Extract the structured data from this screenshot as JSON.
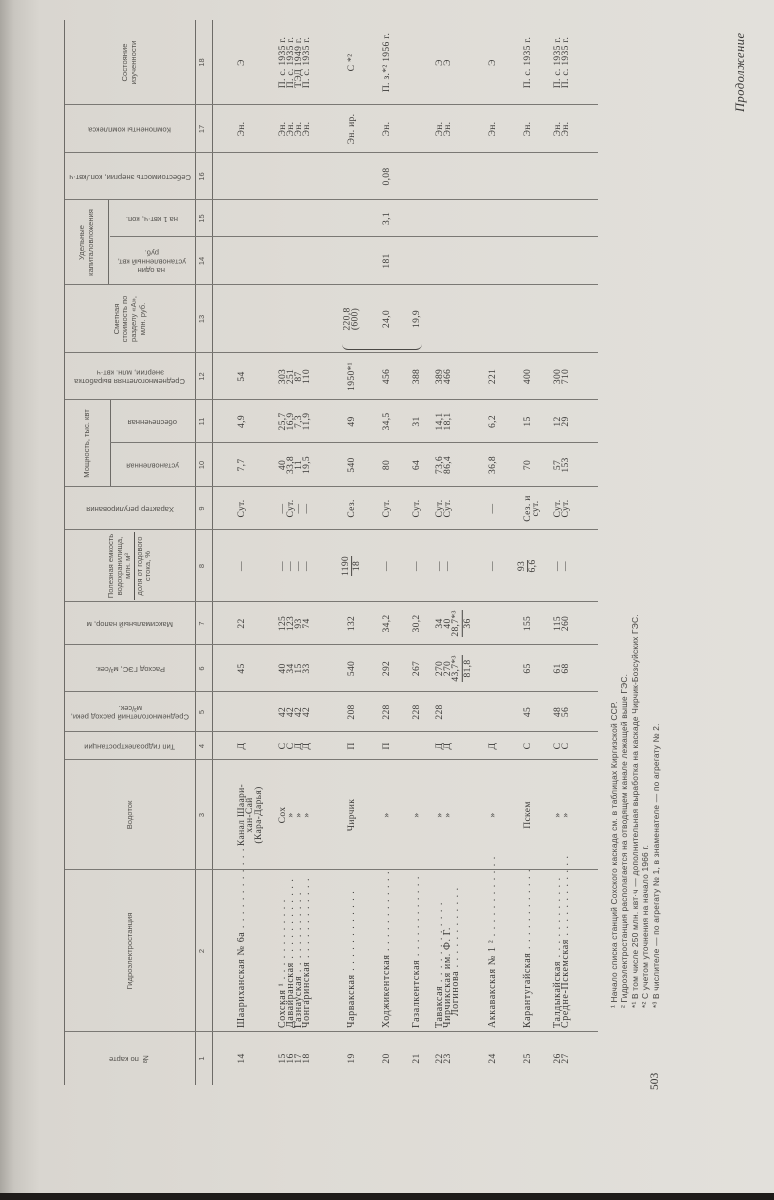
{
  "running_head": "Продолжение",
  "page_number": "503",
  "table": {
    "headers": {
      "no": "№ по карте",
      "station": "Гидроэлектростанция",
      "river": "Водоток",
      "type": "Тип гидроэлектростанции",
      "river_flow": "Среднемноголетний расход реки, м³/сек.",
      "plant_flow": "Расход ГЭС, м³/сек.",
      "head": "Максимальный напор, м",
      "reservoir_num": "Полезная емкость водохранилища, млн. м³",
      "reservoir_den": "доля от годового стока, %",
      "regulation": "Характер регулирования",
      "capacity_group": "Мощность, тыс. квт",
      "cap_installed": "установленная",
      "cap_firm": "обеспеченная",
      "output": "Среднемноголетняя выработка энергии, млн. квт·ч",
      "cost": "Сметная стоимость по разделу «А», млн. руб.",
      "investment_group": "Удельные капиталовложения",
      "spec_kw": "на один установленный квт, руб.",
      "spec_kwh": "на 1 квт·ч, коп.",
      "unit_cost": "Себестоимость энергии, коп./квт·ч",
      "components": "Компоненты комплекса",
      "status": "Состояние изученности"
    },
    "column_numbers": [
      "1",
      "2",
      "3",
      "4",
      "5",
      "6",
      "7",
      "8",
      "9",
      "10",
      "11",
      "12",
      "13",
      "14",
      "15",
      "16",
      "17",
      "18"
    ],
    "rows": [
      {
        "no": "14",
        "station": "Шаариханская № 6а",
        "river": [
          "Канал Шаари-",
          "хан-Сай",
          "(Кара-Дарья)"
        ],
        "type": "Д",
        "river_flow": "",
        "plant_flow": "45",
        "head": "22",
        "reservoir": "—",
        "regulation": "Сут.",
        "cap_installed": "7,7",
        "cap_firm": "4,9",
        "output": "54",
        "cost": "",
        "spec_kw": "",
        "spec_kwh": "",
        "unit_cost": "",
        "components": "Эн.",
        "status": "Э"
      },
      {
        "no": "15",
        "station": "Сохская ¹",
        "river": "Сох",
        "type": "С",
        "river_flow": "42",
        "plant_flow": "40",
        "head": "125",
        "reservoir": "—",
        "regulation": "—",
        "cap_installed": "40",
        "cap_firm": "25,7",
        "output": "303",
        "cost": "",
        "spec_kw": "",
        "spec_kwh": "",
        "unit_cost": "",
        "components": "Эн.",
        "status": "П. с. 1935 г."
      },
      {
        "no": "16",
        "station": "Давайранская",
        "river": "»",
        "type": "С",
        "river_flow": "42",
        "plant_flow": "34",
        "head": "123",
        "reservoir": "—",
        "regulation": "Сут.",
        "cap_installed": "33,8",
        "cap_firm": "16,9",
        "output": "251",
        "cost": "",
        "spec_kw": "",
        "spec_kwh": "",
        "unit_cost": "",
        "components": "Эн.",
        "status": "П. с. 1935 г."
      },
      {
        "no": "17",
        "station": "Газнауская",
        "river": "»",
        "type": "Д",
        "river_flow": "42",
        "plant_flow": "15",
        "head": "93",
        "reservoir": "—",
        "regulation": "—",
        "cap_installed": "11",
        "cap_firm": "7,3",
        "output": "87",
        "cost": "",
        "spec_kw": "",
        "spec_kwh": "",
        "unit_cost": "",
        "components": "Эн.",
        "status": "ТЭД 1949 г."
      },
      {
        "no": "18",
        "station": "Чонгаринская",
        "river": "»",
        "type": "Д",
        "river_flow": "42",
        "plant_flow": "33",
        "head": "74",
        "reservoir": "—",
        "regulation": "—",
        "cap_installed": "19,5",
        "cap_firm": "11,9",
        "output": "110",
        "cost": "",
        "spec_kw": "",
        "spec_kwh": "",
        "unit_cost": "",
        "components": "Эн.",
        "status": "П. с. 1935 г."
      },
      {
        "no": "19",
        "station": "Чарвакская",
        "river": "Чирчик",
        "type": "П",
        "river_flow": "208",
        "plant_flow": "540",
        "head": "132",
        "reservoir": {
          "num": "1190",
          "den": "18"
        },
        "regulation": "Сез.",
        "cap_installed": "540",
        "cap_firm": "49",
        "output": "1950*¹",
        "cost": [
          "220,8",
          "(600)"
        ],
        "spec_kw": "",
        "spec_kwh": "",
        "unit_cost": "",
        "components": "Эн. ир.",
        "status": "С *²"
      },
      {
        "no": "20",
        "station": "Ходжикентская",
        "river": "»",
        "type": "П",
        "river_flow": "228",
        "plant_flow": "292",
        "head": "34,2",
        "reservoir": "—",
        "regulation": "Сут.",
        "cap_installed": "80",
        "cap_firm": "34,5",
        "output": "456",
        "cost": "24,0",
        "spec_kw": "181",
        "spec_kwh": "3,1",
        "unit_cost": "0,08",
        "components": "Эн.",
        "status": "П. з.*² 1956 г."
      },
      {
        "no": "21",
        "station": "Газалкентская",
        "river": "»",
        "type": "",
        "river_flow": "228",
        "plant_flow": "267",
        "head": "30,2",
        "reservoir": "—",
        "regulation": "Сут.",
        "cap_installed": "64",
        "cap_firm": "31",
        "output": "388",
        "cost": "19,9",
        "spec_kw": "",
        "spec_kwh": "",
        "unit_cost": "",
        "components": "",
        "status": ""
      },
      {
        "no": "22",
        "station": "Таваксая",
        "river": "»",
        "type": "Д",
        "river_flow": "228",
        "plant_flow": "270",
        "head": "34",
        "reservoir": "—",
        "regulation": "Сут.",
        "cap_installed": "73,6",
        "cap_firm": "14,1",
        "output": "389",
        "cost": "",
        "spec_kw": "",
        "spec_kwh": "",
        "unit_cost": "",
        "components": "Эн.",
        "status": "Э"
      },
      {
        "no": "23",
        "station": [
          "Чирчикская им. Ф. Г.",
          "Логинова"
        ],
        "river": "»",
        "type": "Д",
        "river_flow": "",
        "plant_flow": {
          "num": [
            "270",
            "43,7*³"
          ],
          "den": "81,8"
        },
        "head": {
          "num": [
            "40",
            "28,7*³"
          ],
          "den": "36"
        },
        "reservoir": "—",
        "regulation": "Сут.",
        "cap_installed": "86,4",
        "cap_firm": "18,1",
        "output": "466",
        "cost": "",
        "spec_kw": "",
        "spec_kwh": "",
        "unit_cost": "",
        "components": "Эн.",
        "status": "Э"
      },
      {
        "no": "24",
        "station": "Аккавакская № 1 ²",
        "river": "»",
        "type": "Д",
        "river_flow": "",
        "plant_flow": "",
        "head": "",
        "reservoir": "—",
        "regulation": "—",
        "cap_installed": "36,8",
        "cap_firm": "6,2",
        "output": "221",
        "cost": "",
        "spec_kw": "",
        "spec_kwh": "",
        "unit_cost": "",
        "components": "Эн.",
        "status": "Э"
      },
      {
        "no": "25",
        "station": "Карантугайская",
        "river": "Пскем",
        "type": "С",
        "river_flow": "45",
        "plant_flow": "65",
        "head": "155",
        "reservoir": {
          "num": "93",
          "den": "6,6"
        },
        "regulation": [
          "Сез. и",
          "сут."
        ],
        "cap_installed": "70",
        "cap_firm": "15",
        "output": "400",
        "cost": "",
        "spec_kw": "",
        "spec_kwh": "",
        "unit_cost": "",
        "components": "Эн.",
        "status": "П. с. 1935 г."
      },
      {
        "no": "26",
        "station": "Талдыкайская",
        "river": "»",
        "type": "С",
        "river_flow": "48",
        "plant_flow": "61",
        "head": "115",
        "reservoir": "—",
        "regulation": "Сут.",
        "cap_installed": "57",
        "cap_firm": "12",
        "output": "300",
        "cost": "",
        "spec_kw": "",
        "spec_kwh": "",
        "unit_cost": "",
        "components": "Эн.",
        "status": "П. с. 1935 г."
      },
      {
        "no": "27",
        "station": "Средне-Пскемская",
        "river": "»",
        "type": "С",
        "river_flow": "56",
        "plant_flow": "68",
        "head": "260",
        "reservoir": "—",
        "regulation": "Сут.",
        "cap_installed": "153",
        "cap_firm": "29",
        "output": "710",
        "cost": "",
        "spec_kw": "",
        "spec_kwh": "",
        "unit_cost": "",
        "components": "Эн.",
        "status": "П. с. 1935 г."
      }
    ]
  },
  "footnotes": [
    "¹ Начало списка станций Сохского каскада см. в таблицах Киргизской ССР.",
    "² Гидроэлектростанция располагается на отводящем канале лежащей выше ГЭС.",
    "*¹ В том числе 250 млн. квт·ч — дополнительная выработка на каскаде Чирчик-Бозсуйских ГЭС.",
    "*² С учетом уточнения на начало 1966 г.",
    "*³ В числителе — по агрегату № 1, в знаменателе — по агрегату № 2."
  ]
}
